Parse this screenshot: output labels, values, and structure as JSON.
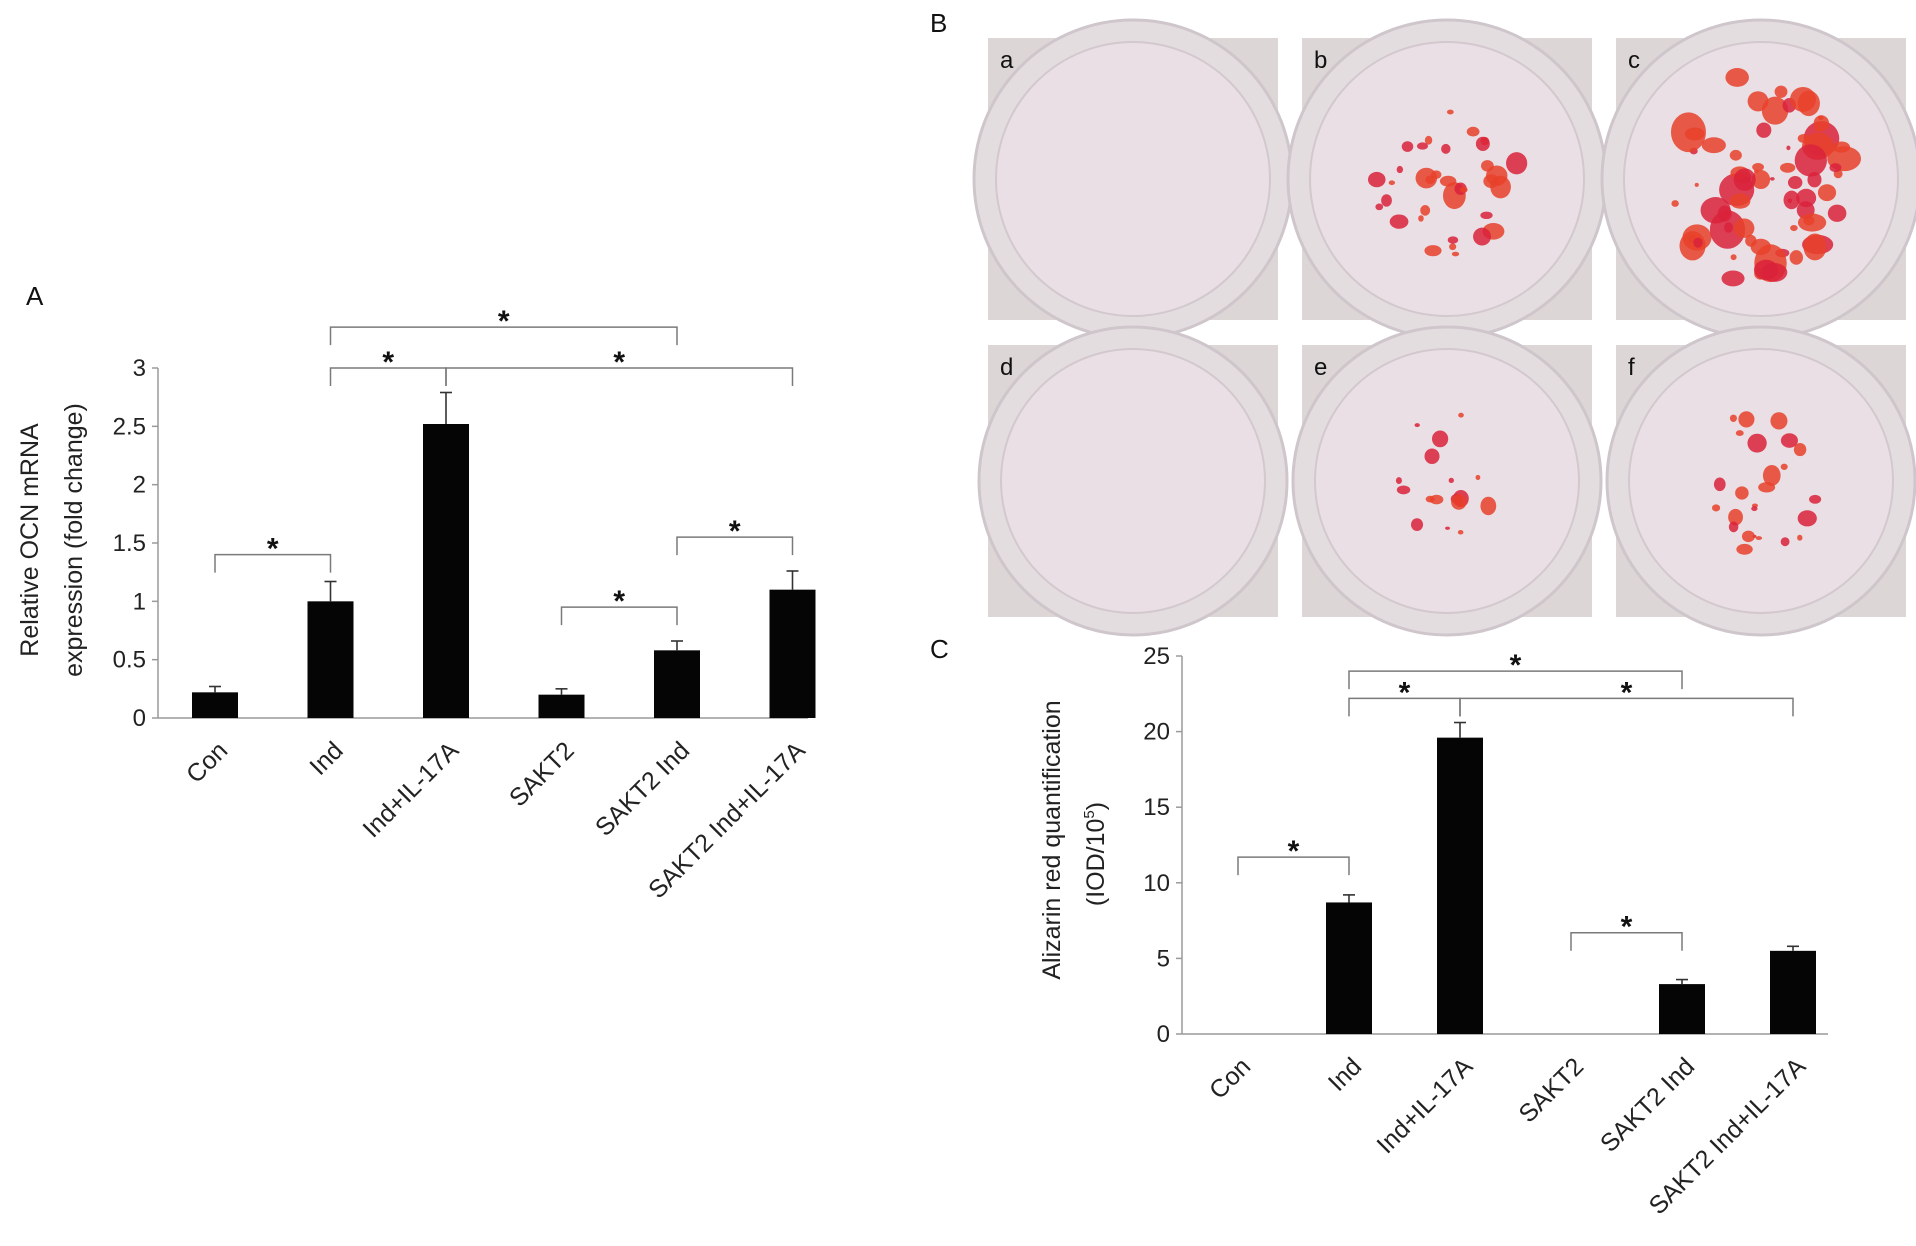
{
  "panel_labels": {
    "a": "A",
    "b": "B",
    "c": "C"
  },
  "chart_data": [
    {
      "panel": "A",
      "type": "bar",
      "categories": [
        "Con",
        "Ind",
        "Ind+IL-17A",
        "SAKT2",
        "SAKT2 Ind",
        "SAKT2 Ind+IL-17A"
      ],
      "values": [
        0.22,
        1.0,
        2.52,
        0.2,
        0.58,
        1.1
      ],
      "errors": [
        0.05,
        0.17,
        0.27,
        0.05,
        0.08,
        0.16
      ],
      "ylabel_lines": [
        "Relative OCN mRNA",
        "expression (fold change)"
      ],
      "yticks": [
        "0",
        "0.5",
        "1",
        "1.5",
        "2",
        "2.5",
        "3"
      ],
      "ylim": [
        0,
        3
      ],
      "significance": [
        {
          "from": 0,
          "to": 1,
          "y": 1.4,
          "label": "*"
        },
        {
          "from": 3,
          "to": 4,
          "y": 0.95,
          "label": "*"
        },
        {
          "from": 4,
          "to": 5,
          "y": 1.55,
          "label": "*"
        },
        {
          "from": 1,
          "to": 2,
          "y": 3.0,
          "label": "*"
        },
        {
          "from": 2,
          "to": 5,
          "y": 3.0,
          "label": "*"
        },
        {
          "from": 1,
          "to": 4,
          "y": 3.35,
          "label": "*"
        }
      ]
    },
    {
      "panel": "C",
      "type": "bar",
      "categories": [
        "Con",
        "Ind",
        "Ind+IL-17A",
        "SAKT2",
        "SAKT2 Ind",
        "SAKT2 Ind+IL-17A"
      ],
      "values": [
        0,
        8.7,
        19.6,
        0,
        3.3,
        5.5
      ],
      "errors": [
        0,
        0.5,
        1.0,
        0,
        0.3,
        0.3
      ],
      "ylabel_lines": [
        "Alizarin red quantification",
        "(IOD/10",
        "5",
        ")"
      ],
      "yticks": [
        "0",
        "5",
        "10",
        "15",
        "20",
        "25"
      ],
      "ylim": [
        0,
        25
      ],
      "significance": [
        {
          "from": 0,
          "to": 1,
          "y": 11.7,
          "label": "*"
        },
        {
          "from": 3,
          "to": 4,
          "y": 6.7,
          "label": "*"
        },
        {
          "from": 1,
          "to": 2,
          "y": 22.2,
          "label": "*"
        },
        {
          "from": 2,
          "to": 5,
          "y": 22.2,
          "label": "*"
        },
        {
          "from": 1,
          "to": 4,
          "y": 24.0,
          "label": "*"
        }
      ]
    }
  ],
  "wells": {
    "labels": [
      "a",
      "b",
      "c",
      "d",
      "e",
      "f"
    ],
    "stain_level": [
      0.0,
      0.5,
      1.0,
      0.0,
      0.25,
      0.35
    ],
    "colors": {
      "plate": "#dcd6d6",
      "ring": "#cfc6cc",
      "inner": "#e9dfe4",
      "stain": "#d9223b",
      "stain2": "#e8412a"
    }
  }
}
